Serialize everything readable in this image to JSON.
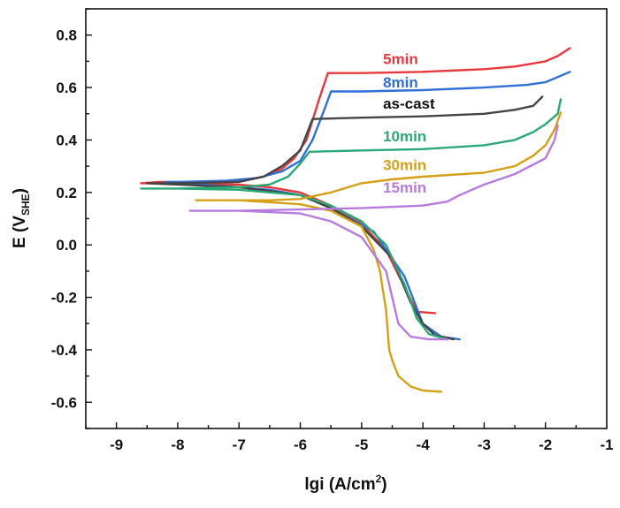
{
  "chart_data": {
    "type": "line",
    "xlabel": "lgi (A/cm",
    "xlabel_sup": "2",
    "xlabel_end": ")",
    "ylabel_main": "E (V",
    "ylabel_sub": "SHE",
    "ylabel_end": ")",
    "xlim": [
      -9.5,
      -1
    ],
    "ylim": [
      -0.7,
      0.9
    ],
    "x_ticks": [
      -9,
      -8,
      -7,
      -6,
      -5,
      -4,
      -3,
      -2,
      -1
    ],
    "x_tick_labels": [
      "-9",
      "-8",
      "-7",
      "-6",
      "-5",
      "-4",
      "-3",
      "-2",
      "-1"
    ],
    "y_ticks": [
      0.8,
      0.6,
      0.4,
      0.2,
      0.0,
      -0.2,
      -0.4,
      -0.6
    ],
    "y_tick_labels": [
      "0.8",
      "0.6",
      "0.4",
      "0.2",
      "0.0",
      "-0.2",
      "-0.4",
      "-0.6"
    ],
    "grid": false,
    "series": [
      {
        "name": "5min",
        "color": "#e8383d",
        "x": [
          -3.8,
          -4.1,
          -4.3,
          -4.6,
          -5.0,
          -5.5,
          -6.0,
          -6.5,
          -7.0,
          -8.0,
          -8.6,
          -8.3,
          -7.5,
          -7.0,
          -6.6,
          -6.3,
          -6.1,
          -5.9,
          -5.7,
          -5.55,
          -5.0,
          -4.0,
          -3.0,
          -2.5,
          -2.0,
          -1.8,
          -1.6
        ],
        "y": [
          -0.26,
          -0.255,
          -0.16,
          -0.02,
          0.08,
          0.15,
          0.2,
          0.22,
          0.23,
          0.235,
          0.235,
          0.24,
          0.24,
          0.245,
          0.26,
          0.29,
          0.33,
          0.4,
          0.55,
          0.655,
          0.655,
          0.66,
          0.67,
          0.68,
          0.7,
          0.72,
          0.75
        ]
      },
      {
        "name": "8min",
        "color": "#2f6fd6",
        "x": [
          -3.4,
          -3.7,
          -4.0,
          -4.3,
          -4.8,
          -5.5,
          -6.0,
          -6.5,
          -7.0,
          -8.2,
          -8.0,
          -7.2,
          -6.7,
          -6.3,
          -6.0,
          -5.8,
          -5.6,
          -5.5,
          -5.0,
          -4.0,
          -3.0,
          -2.3,
          -2.0,
          -1.8,
          -1.6
        ],
        "y": [
          -0.36,
          -0.35,
          -0.3,
          -0.12,
          0.05,
          0.14,
          0.19,
          0.21,
          0.22,
          0.24,
          0.24,
          0.245,
          0.255,
          0.28,
          0.32,
          0.4,
          0.52,
          0.585,
          0.585,
          0.59,
          0.6,
          0.61,
          0.62,
          0.64,
          0.66
        ]
      },
      {
        "name": "as-cast",
        "color": "#444444",
        "x": [
          -3.5,
          -3.8,
          -4.0,
          -4.2,
          -4.5,
          -5.0,
          -5.5,
          -6.0,
          -7.0,
          -8.0,
          -8.5,
          -8.0,
          -7.0,
          -6.6,
          -6.3,
          -6.0,
          -5.9,
          -5.8,
          -5.0,
          -4.0,
          -3.0,
          -2.5,
          -2.2,
          -2.05
        ],
        "y": [
          -0.36,
          -0.345,
          -0.3,
          -0.22,
          -0.05,
          0.07,
          0.14,
          0.19,
          0.22,
          0.23,
          0.235,
          0.235,
          0.24,
          0.26,
          0.3,
          0.36,
          0.42,
          0.48,
          0.485,
          0.49,
          0.5,
          0.515,
          0.53,
          0.565
        ]
      },
      {
        "name": "10min",
        "color": "#2aa876",
        "x": [
          -3.6,
          -3.9,
          -4.1,
          -4.3,
          -4.6,
          -5.0,
          -5.5,
          -6.0,
          -7.0,
          -8.0,
          -8.6,
          -8.0,
          -7.0,
          -6.5,
          -6.2,
          -6.0,
          -5.85,
          -5.0,
          -4.0,
          -3.0,
          -2.5,
          -2.2,
          -2.0,
          -1.8,
          -1.75
        ],
        "y": [
          -0.36,
          -0.34,
          -0.28,
          -0.15,
          0.0,
          0.09,
          0.15,
          0.19,
          0.21,
          0.215,
          0.215,
          0.215,
          0.22,
          0.23,
          0.26,
          0.31,
          0.355,
          0.36,
          0.365,
          0.38,
          0.4,
          0.43,
          0.46,
          0.5,
          0.555
        ]
      },
      {
        "name": "30min",
        "color": "#d4a017",
        "x": [
          -3.7,
          -4.0,
          -4.2,
          -4.4,
          -4.5,
          -4.55,
          -4.6,
          -4.7,
          -4.8,
          -5.0,
          -5.5,
          -6.0,
          -7.0,
          -7.7,
          -7.0,
          -6.5,
          -6.0,
          -5.5,
          -5.0,
          -4.5,
          -4.0,
          -3.0,
          -2.5,
          -2.2,
          -2.0,
          -1.85,
          -1.75
        ],
        "y": [
          -0.56,
          -0.555,
          -0.54,
          -0.5,
          -0.44,
          -0.4,
          -0.25,
          -0.1,
          -0.02,
          0.07,
          0.13,
          0.155,
          0.17,
          0.17,
          0.17,
          0.17,
          0.175,
          0.2,
          0.235,
          0.25,
          0.26,
          0.275,
          0.3,
          0.34,
          0.38,
          0.44,
          0.505
        ]
      },
      {
        "name": "15min",
        "color": "#b77be0",
        "x": [
          -3.6,
          -3.9,
          -4.2,
          -4.4,
          -4.6,
          -5.0,
          -5.5,
          -6.0,
          -7.0,
          -7.8,
          -7.0,
          -6.0,
          -5.0,
          -4.0,
          -3.6,
          -3.4,
          -3.0,
          -2.5,
          -2.0,
          -1.85,
          -1.8
        ],
        "y": [
          -0.36,
          -0.36,
          -0.35,
          -0.3,
          -0.1,
          0.03,
          0.09,
          0.12,
          0.13,
          0.13,
          0.13,
          0.135,
          0.14,
          0.15,
          0.165,
          0.19,
          0.23,
          0.27,
          0.33,
          0.4,
          0.455
        ]
      }
    ],
    "labels": [
      {
        "text": "5min",
        "color": "#e8383d",
        "x": -4.65,
        "y": 0.69
      },
      {
        "text": "8min",
        "color": "#2f6fd6",
        "x": -4.65,
        "y": 0.6
      },
      {
        "text": "as-cast",
        "color": "#111111",
        "x": -4.65,
        "y": 0.52
      },
      {
        "text": "10min",
        "color": "#2aa876",
        "x": -4.65,
        "y": 0.395
      },
      {
        "text": "30min",
        "color": "#d4a017",
        "x": -4.65,
        "y": 0.285
      },
      {
        "text": "15min",
        "color": "#b77be0",
        "x": -4.65,
        "y": 0.2
      }
    ]
  }
}
